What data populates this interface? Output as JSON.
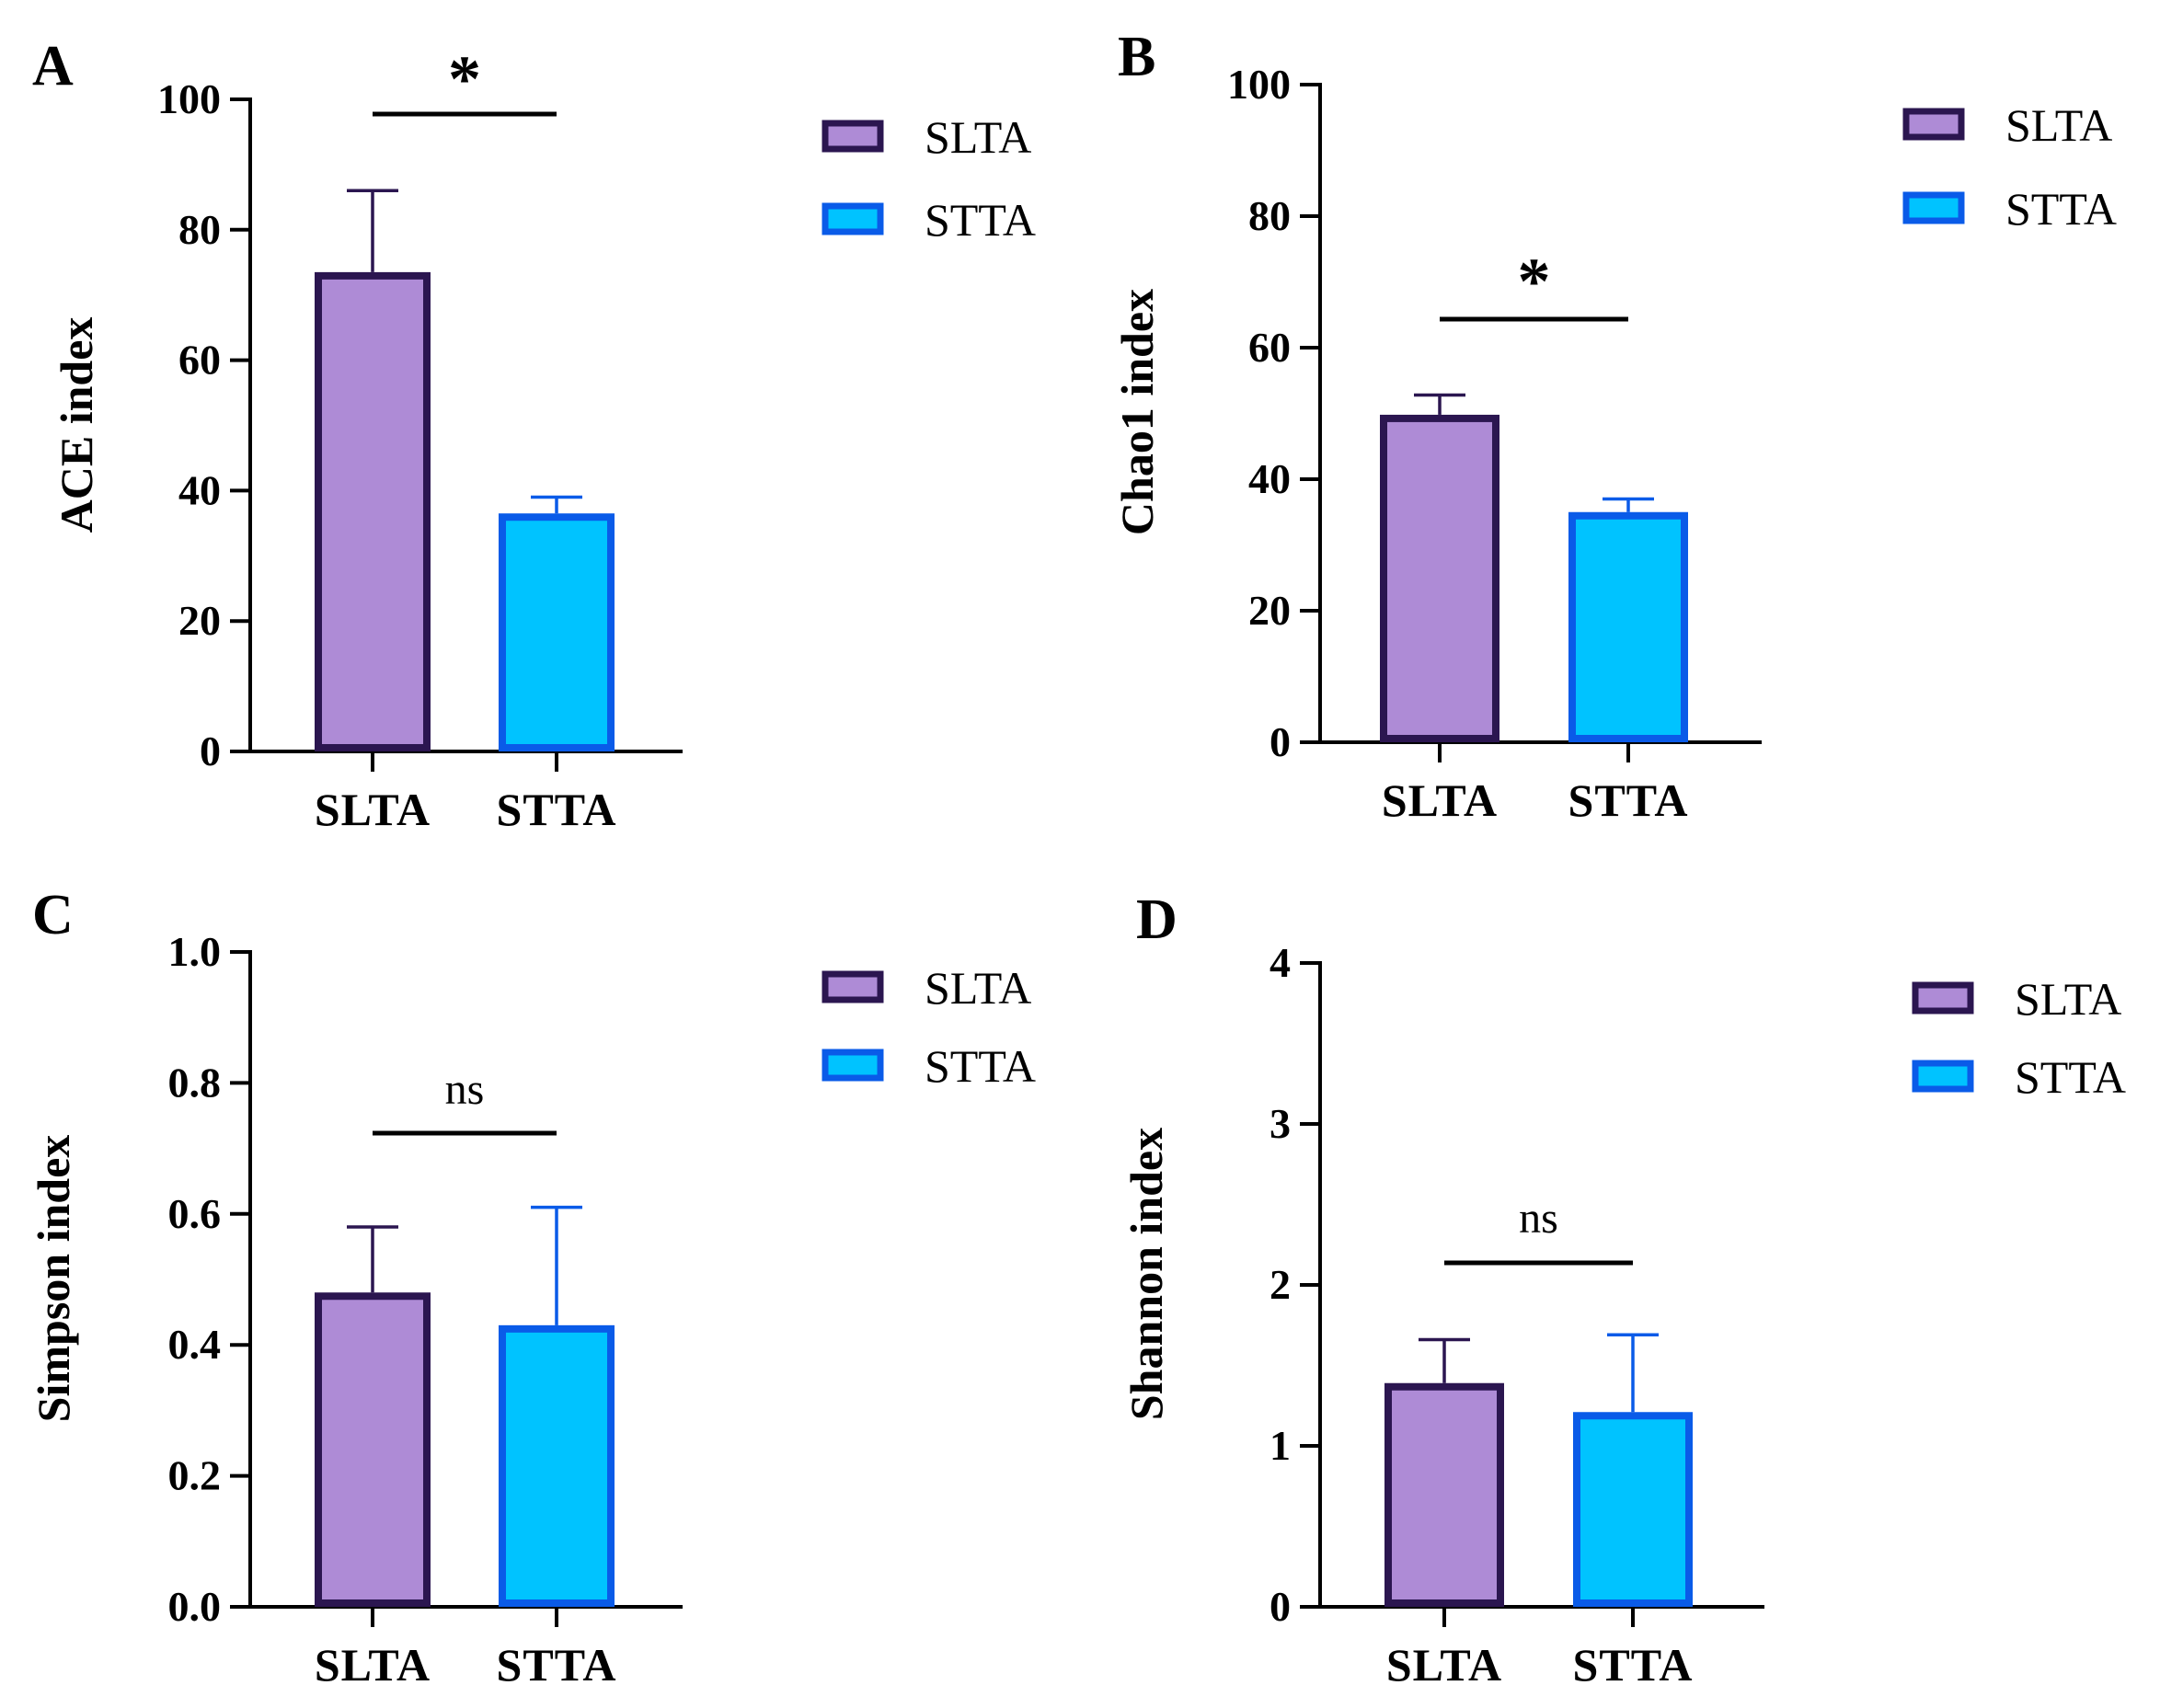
{
  "colors": {
    "SLTA": {
      "fill": "#ae8bd6",
      "stroke": "#2b1650"
    },
    "STTA": {
      "fill": "#00c3ff",
      "stroke": "#0a5be8"
    },
    "axis": "#000000"
  },
  "chart_data": [
    {
      "panel": "A",
      "type": "bar",
      "categories": [
        "SLTA",
        "STTA"
      ],
      "values": [
        73.5,
        36.5
      ],
      "errors": [
        12.5,
        2.5
      ],
      "ylabel": "ACE index",
      "ylim": [
        0,
        100
      ],
      "yticks": [
        "0",
        "20",
        "40",
        "60",
        "80",
        "100"
      ],
      "legend": [
        "SLTA",
        "STTA"
      ],
      "significance": "*"
    },
    {
      "panel": "B",
      "type": "bar",
      "categories": [
        "SLTA",
        "STTA"
      ],
      "values": [
        49.8,
        35.0
      ],
      "errors": [
        3.0,
        2.0
      ],
      "ylabel": "Chao1 index",
      "ylim": [
        0,
        100
      ],
      "yticks": [
        "0",
        "20",
        "40",
        "60",
        "80",
        "100"
      ],
      "legend": [
        "SLTA",
        "STTA"
      ],
      "significance": "*"
    },
    {
      "panel": "C",
      "type": "bar",
      "categories": [
        "SLTA",
        "STTA"
      ],
      "values": [
        0.48,
        0.43
      ],
      "errors": [
        0.1,
        0.18
      ],
      "ylabel": "Simpson index",
      "ylim": [
        0,
        1.0
      ],
      "yticks": [
        "0.0",
        "0.2",
        "0.4",
        "0.6",
        "0.8",
        "1.0"
      ],
      "legend": [
        "SLTA",
        "STTA"
      ],
      "significance": "ns"
    },
    {
      "panel": "D",
      "type": "bar",
      "categories": [
        "SLTA",
        "STTA"
      ],
      "values": [
        1.39,
        1.21
      ],
      "errors": [
        0.27,
        0.48
      ],
      "ylabel": "Shannon index",
      "ylim": [
        0,
        4
      ],
      "yticks": [
        "0",
        "1",
        "2",
        "3",
        "4"
      ],
      "legend": [
        "SLTA",
        "STTA"
      ],
      "significance": "ns"
    }
  ]
}
